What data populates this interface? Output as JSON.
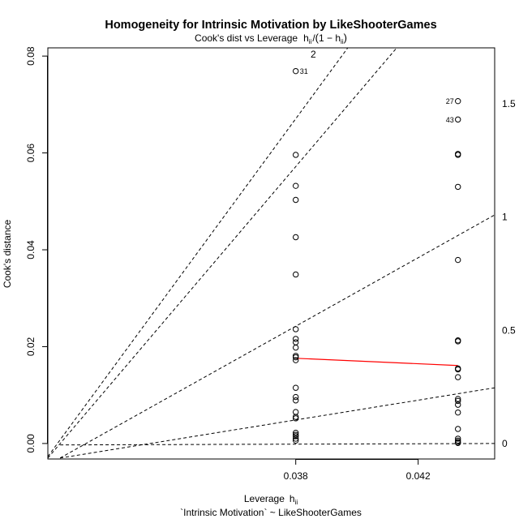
{
  "chart_data": {
    "type": "scatter",
    "title": "Homogeneity for Intrinsic Motivation by LikeShooterGames",
    "subtitle": "Cook's dist vs Leverage",
    "subtitle_formula": {
      "h": "h",
      "sub": "ii",
      "slash": "/",
      "open": "(",
      "one_minus": "1 − ",
      "close": ")"
    },
    "xlabel": "Leverage",
    "xlabel_symbol": {
      "h": "h",
      "sub": "ii"
    },
    "ylabel": "Cook's distance",
    "caption": "`Intrinsic Motivation` ~ LikeShooterGames",
    "xlim": [
      0.0299,
      0.0445
    ],
    "ylim": [
      -0.0032,
      0.0817
    ],
    "x_ticks": [
      {
        "value": 0.038,
        "label": "0.038"
      },
      {
        "value": 0.042,
        "label": "0.042"
      }
    ],
    "y_ticks": [
      {
        "value": 0.0,
        "label": "0.00"
      },
      {
        "value": 0.02,
        "label": "0.02"
      },
      {
        "value": 0.04,
        "label": "0.04"
      },
      {
        "value": 0.06,
        "label": "0.06"
      },
      {
        "value": 0.08,
        "label": "0.08"
      }
    ],
    "contour_labels": [
      {
        "label": "2",
        "slope": 2,
        "side": "top"
      },
      {
        "label": "1.5",
        "slope": 1.5,
        "side": "right"
      },
      {
        "label": "1",
        "slope": 1,
        "side": "right"
      },
      {
        "label": "0.5",
        "slope": 0.5,
        "side": "right"
      },
      {
        "label": "0",
        "slope": 0,
        "side": "right"
      }
    ],
    "contour_lines": [
      {
        "x0": 0.0303,
        "x1": 0.0445,
        "y0": -0.003,
        "y1": 0.0472
      },
      {
        "x0": 0.0303,
        "x1": 0.0445,
        "y0": -0.003,
        "y1": 0.0115
      },
      {
        "x0": 0.0303,
        "x1": 0.0445,
        "y0": -0.0003,
        "y1": 0.0
      },
      {
        "x0": 0.0299,
        "x1": 0.0397,
        "y0": -0.0027,
        "y1": 0.0817
      },
      {
        "x0": 0.0299,
        "x1": 0.0413,
        "y0": -0.003,
        "y1": 0.0817
      }
    ],
    "smooth_line": {
      "color": "#ff0000",
      "points": [
        [
          0.038,
          0.0176
        ],
        [
          0.0433,
          0.0161
        ]
      ]
    },
    "series": [
      {
        "x": 0.038,
        "values": [
          0.0769,
          0.0596,
          0.0532,
          0.0503,
          0.0426,
          0.0349,
          0.0236,
          0.0216,
          0.0209,
          0.0198,
          0.0181,
          0.0178,
          0.0172,
          0.0115,
          0.0096,
          0.0089,
          0.0065,
          0.0055,
          0.0052,
          0.0022,
          0.0018,
          0.0015,
          0.001,
          0.0006
        ]
      },
      {
        "x": 0.0433,
        "values": [
          0.0707,
          0.0669,
          0.0598,
          0.0596,
          0.053,
          0.0379,
          0.0213,
          0.0211,
          0.0155,
          0.0153,
          0.0137,
          0.0092,
          0.0088,
          0.008,
          0.0064,
          0.003,
          0.001,
          0.0006,
          0.0003,
          0.0001
        ]
      }
    ],
    "point_labels": [
      {
        "label": "31",
        "x": 0.038,
        "y": 0.0769,
        "side": "right"
      },
      {
        "label": "27",
        "x": 0.0433,
        "y": 0.0707,
        "side": "left"
      },
      {
        "label": "43",
        "x": 0.0433,
        "y": 0.0669,
        "side": "left"
      }
    ],
    "colors": {
      "points": "#000000",
      "contours": "#000000",
      "smooth": "#ff0000"
    },
    "grid": false,
    "legend": "none"
  }
}
